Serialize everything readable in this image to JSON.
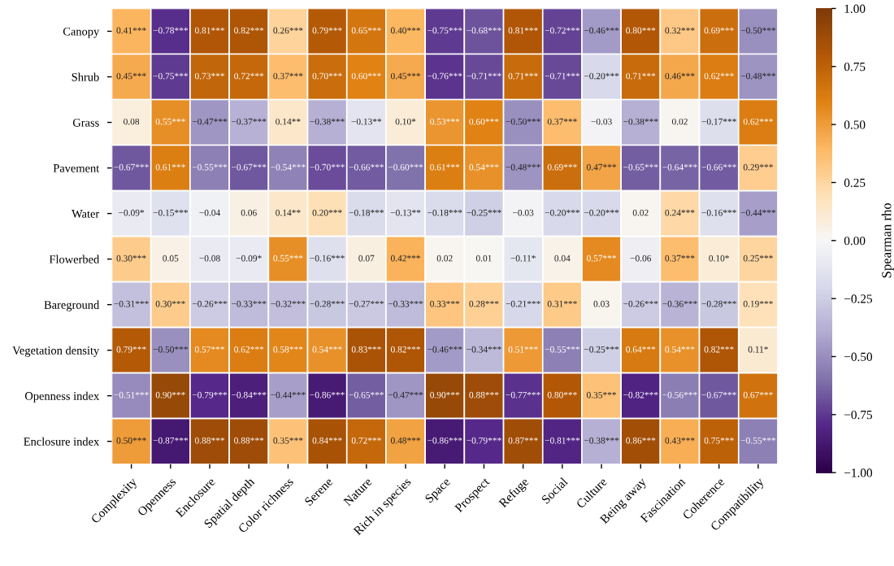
{
  "chart_data": {
    "type": "heatmap",
    "clabel": "Spearman rho",
    "categories": [
      "Complexity",
      "Openness",
      "Enclosure",
      "Spatial depth",
      "Color richness",
      "Serene",
      "Nature",
      "Rich in species",
      "Space",
      "Prospect",
      "Refuge",
      "Social",
      "Culture",
      "Being away",
      "Fascination",
      "Coherence",
      "Compatibility"
    ],
    "y_categories": [
      "Canopy",
      "Shrub",
      "Grass",
      "Pavement",
      "Water",
      "Flowerbed",
      "Bareground",
      "Vegetation density",
      "Openness index",
      "Enclosure index"
    ],
    "cells": [
      [
        0.41,
        -0.78,
        0.81,
        0.82,
        0.26,
        0.79,
        0.65,
        0.4,
        -0.75,
        -0.68,
        0.81,
        -0.72,
        -0.46,
        0.8,
        0.32,
        0.69,
        -0.5
      ],
      [
        0.45,
        -0.75,
        0.73,
        0.72,
        0.37,
        0.7,
        0.6,
        0.45,
        -0.76,
        -0.71,
        0.71,
        -0.71,
        -0.2,
        0.71,
        0.46,
        0.62,
        -0.48
      ],
      [
        0.08,
        0.55,
        -0.47,
        -0.37,
        0.14,
        -0.38,
        -0.13,
        0.1,
        0.53,
        0.6,
        -0.5,
        0.37,
        -0.03,
        -0.38,
        0.02,
        -0.17,
        0.62
      ],
      [
        -0.67,
        0.61,
        -0.55,
        -0.67,
        -0.54,
        -0.7,
        -0.66,
        -0.6,
        0.61,
        0.54,
        -0.48,
        0.69,
        0.47,
        -0.65,
        -0.64,
        -0.66,
        0.29
      ],
      [
        -0.09,
        -0.15,
        -0.04,
        0.06,
        0.14,
        0.2,
        -0.18,
        -0.13,
        -0.18,
        -0.25,
        -0.03,
        -0.2,
        -0.2,
        0.02,
        0.24,
        -0.16,
        -0.44
      ],
      [
        0.3,
        0.05,
        -0.08,
        -0.09,
        0.55,
        -0.16,
        0.07,
        0.42,
        0.02,
        0.01,
        -0.11,
        0.04,
        0.57,
        -0.06,
        0.37,
        0.1,
        0.25
      ],
      [
        -0.31,
        0.3,
        -0.26,
        -0.33,
        -0.32,
        -0.28,
        -0.27,
        -0.33,
        0.33,
        0.28,
        -0.21,
        0.31,
        0.03,
        -0.26,
        -0.36,
        -0.28,
        0.19
      ],
      [
        0.79,
        -0.5,
        0.57,
        0.62,
        0.58,
        0.54,
        0.83,
        0.82,
        -0.46,
        -0.34,
        0.51,
        -0.55,
        -0.25,
        0.64,
        0.54,
        0.82,
        0.11
      ],
      [
        -0.51,
        0.9,
        -0.79,
        -0.84,
        -0.44,
        -0.86,
        -0.65,
        -0.47,
        0.9,
        0.88,
        -0.77,
        0.8,
        0.35,
        -0.82,
        -0.56,
        -0.67,
        0.67
      ],
      [
        0.5,
        -0.87,
        0.88,
        0.88,
        0.35,
        0.84,
        0.72,
        0.48,
        -0.86,
        -0.79,
        0.87,
        -0.81,
        -0.38,
        0.86,
        0.43,
        0.75,
        -0.55
      ]
    ],
    "cell_labels": [
      [
        "0.41***",
        "−0.78***",
        "0.81***",
        "0.82***",
        "0.26***",
        "0.79***",
        "0.65***",
        "0.40***",
        "−0.75***",
        "−0.68***",
        "0.81***",
        "−0.72***",
        "−0.46***",
        "0.80***",
        "0.32***",
        "0.69***",
        "−0.50***"
      ],
      [
        "0.45***",
        "−0.75***",
        "0.73***",
        "0.72***",
        "0.37***",
        "0.70***",
        "0.60***",
        "0.45***",
        "−0.76***",
        "−0.71***",
        "0.71***",
        "−0.71***",
        "−0.20***",
        "0.71***",
        "0.46***",
        "0.62***",
        "−0.48***"
      ],
      [
        "0.08",
        "0.55***",
        "−0.47***",
        "−0.37***",
        "0.14**",
        "−0.38***",
        "−0.13**",
        "0.10*",
        "0.53***",
        "0.60***",
        "−0.50***",
        "0.37***",
        "−0.03",
        "−0.38***",
        "0.02",
        "−0.17***",
        "0.62***"
      ],
      [
        "−0.67***",
        "0.61***",
        "−0.55***",
        "−0.67***",
        "−0.54***",
        "−0.70***",
        "−0.66***",
        "−0.60***",
        "0.61***",
        "0.54***",
        "−0.48***",
        "0.69***",
        "0.47***",
        "−0.65***",
        "−0.64***",
        "−0.66***",
        "0.29***"
      ],
      [
        "−0.09*",
        "−0.15***",
        "−0.04",
        "0.06",
        "0.14**",
        "0.20***",
        "−0.18***",
        "−0.13**",
        "−0.18***",
        "−0.25***",
        "−0.03",
        "−0.20***",
        "−0.20***",
        "0.02",
        "0.24***",
        "−0.16***",
        "−0.44***"
      ],
      [
        "0.30***",
        "0.05",
        "−0.08",
        "−0.09*",
        "0.55***",
        "−0.16***",
        "0.07",
        "0.42***",
        "0.02",
        "0.01",
        "−0.11*",
        "0.04",
        "0.57***",
        "−0.06",
        "0.37***",
        "0.10*",
        "0.25***"
      ],
      [
        "−0.31***",
        "0.30***",
        "−0.26***",
        "−0.33***",
        "−0.32***",
        "−0.28***",
        "−0.27***",
        "−0.33***",
        "0.33***",
        "0.28***",
        "−0.21***",
        "0.31***",
        "0.03",
        "−0.26***",
        "−0.36***",
        "−0.28***",
        "0.19***"
      ],
      [
        "0.79***",
        "−0.50***",
        "0.57***",
        "0.62***",
        "0.58***",
        "0.54***",
        "0.83***",
        "0.82***",
        "−0.46***",
        "−0.34***",
        "0.51***",
        "−0.55***",
        "−0.25***",
        "0.64***",
        "0.54***",
        "0.82***",
        "0.11*"
      ],
      [
        "−0.51***",
        "0.90***",
        "−0.79***",
        "−0.84***",
        "−0.44***",
        "−0.86***",
        "−0.65***",
        "−0.47***",
        "0.90***",
        "0.88***",
        "−0.77***",
        "0.80***",
        "0.35***",
        "−0.82***",
        "−0.56***",
        "−0.67***",
        "0.67***"
      ],
      [
        "0.50***",
        "−0.87***",
        "0.88***",
        "0.88***",
        "0.35***",
        "0.84***",
        "0.72***",
        "0.48***",
        "−0.86***",
        "−0.79***",
        "0.87***",
        "−0.81***",
        "−0.38***",
        "0.86***",
        "0.43***",
        "0.75***",
        "−0.55***"
      ]
    ],
    "clim": [
      -1.0,
      1.0
    ],
    "cticks": [
      {
        "value": -1.0,
        "label": "−1.00"
      },
      {
        "value": -0.75,
        "label": "−0.75"
      },
      {
        "value": -0.5,
        "label": "−0.50"
      },
      {
        "value": -0.25,
        "label": "−0.25"
      },
      {
        "value": 0.0,
        "label": "0.00"
      },
      {
        "value": 0.25,
        "label": "0.25"
      },
      {
        "value": 0.5,
        "label": "0.50"
      },
      {
        "value": 0.75,
        "label": "0.75"
      },
      {
        "value": 1.0,
        "label": "1.00"
      }
    ]
  }
}
